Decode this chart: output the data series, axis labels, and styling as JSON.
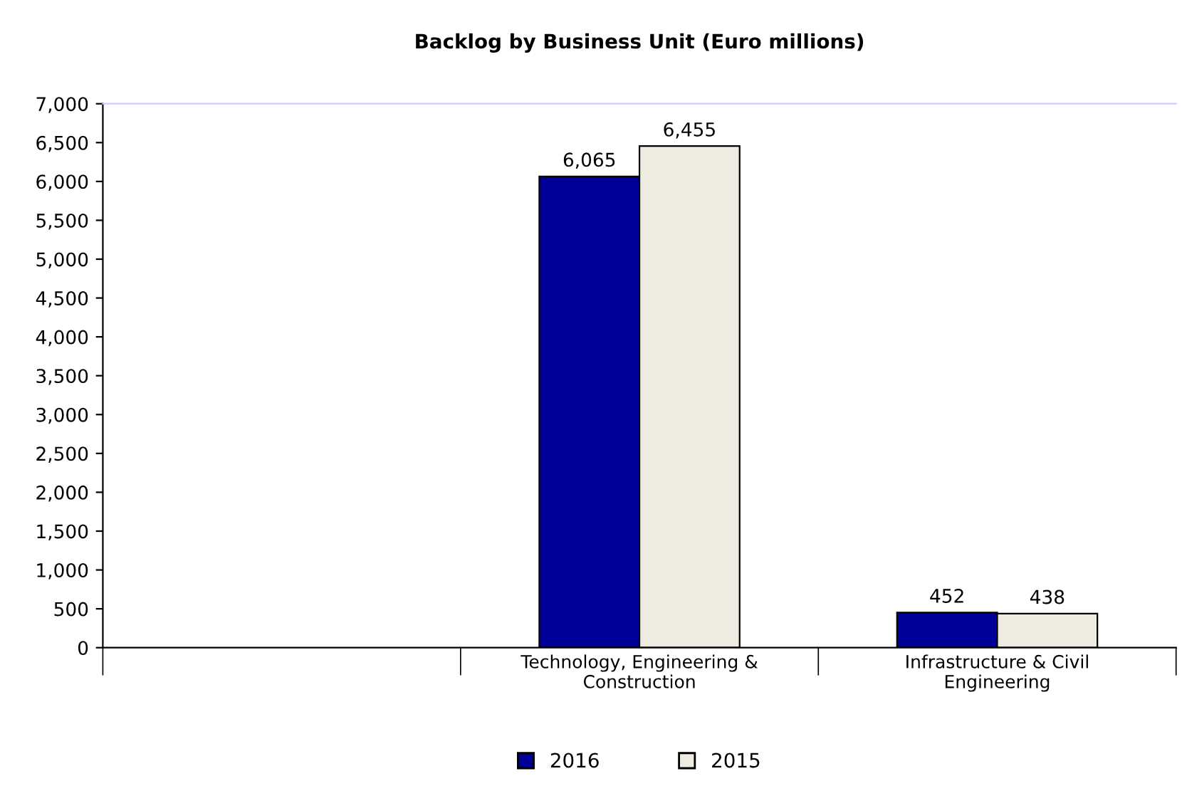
{
  "chart_data": {
    "type": "bar",
    "title": "Backlog by Business Unit (Euro millions)",
    "categories": [
      null,
      "Technology, Engineering & Construction",
      "Infrastructure & Civil Engineering"
    ],
    "series": [
      {
        "name": "2016",
        "color": "#000099",
        "values": [
          null,
          6065,
          452
        ],
        "value_labels": [
          null,
          "6,065",
          "452"
        ]
      },
      {
        "name": "2015",
        "color": "#eeece1",
        "values": [
          null,
          6455,
          438
        ],
        "value_labels": [
          null,
          "6,455",
          "438"
        ]
      }
    ],
    "ylim": [
      0,
      7000
    ],
    "yticks": [
      0,
      500,
      {
        "value": 1000,
        "label": "1,000"
      },
      {
        "value": 1500,
        "label": "1,500"
      },
      {
        "value": 2000,
        "label": "2,000"
      },
      {
        "value": 2500,
        "label": "2,500"
      },
      {
        "value": 3000,
        "label": "3,000"
      },
      {
        "value": 3500,
        "label": "3,500"
      },
      {
        "value": 4000,
        "label": "4,000"
      },
      {
        "value": 4500,
        "label": "4,500"
      },
      {
        "value": 5000,
        "label": "5,000"
      },
      {
        "value": 5500,
        "label": "5,500"
      },
      {
        "value": 6000,
        "label": "6,000"
      },
      {
        "value": 6500,
        "label": "6,500"
      },
      {
        "value": 7000,
        "label": "7,000"
      }
    ],
    "grid": false,
    "legend": "bottom"
  }
}
